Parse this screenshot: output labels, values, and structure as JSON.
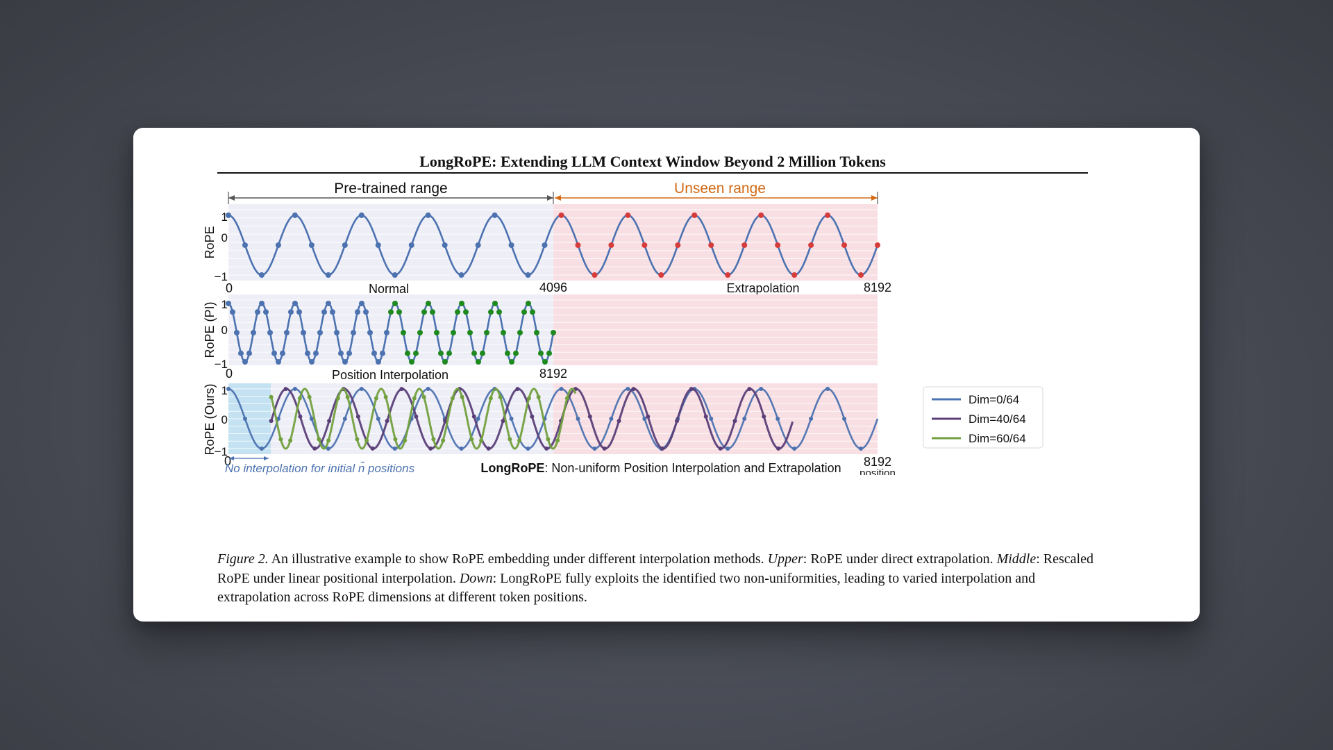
{
  "paper": {
    "running_head": "LongRoPE: Extending LLM Context Window Beyond 2 Million Tokens"
  },
  "figure": {
    "range_labels": {
      "pretrained": "Pre-trained range",
      "unseen": "Unseen range"
    },
    "colors": {
      "curve_blue": "#4c72b0",
      "curve_purple": "#5a3f78",
      "curve_green": "#72a03e",
      "point_red": "#d63c3c",
      "point_green": "#1e8a1e",
      "pretrained_arrow": "#555555",
      "unseen_arrow": "#d36a16",
      "bg_pretrained": "#eeeef7",
      "bg_unseen": "#f8dfe3",
      "bg_initial": "#c4e2f2"
    },
    "panels": [
      {
        "ylabel": "RoPE",
        "yticks": [
          "1",
          "0",
          "−1"
        ],
        "xticks": [
          "0",
          "4096",
          "8192"
        ],
        "sublabels": [
          "Normal",
          "Extrapolation"
        ]
      },
      {
        "ylabel": "RoPE (PI)",
        "yticks": [
          "1",
          "0",
          "−1"
        ],
        "xticks": [
          "0",
          "8192"
        ],
        "sublabels": [
          "Position Interpolation"
        ]
      },
      {
        "ylabel": "RoPE (Ours)",
        "yticks": [
          "1",
          "0",
          "−1"
        ],
        "xticks": [
          "0",
          "8192"
        ],
        "xlabel": "position",
        "note": "No interpolation for initial n̂ positions",
        "sublabel_bold": "LongRoPE",
        "sublabel_rest": ": Non-uniform Position Interpolation and Extrapolation"
      }
    ],
    "legend": [
      "Dim=0/64",
      "Dim=40/64",
      "Dim=60/64"
    ],
    "caption": {
      "label": "Figure 2.",
      "intro": " An illustrative example to show RoPE embedding under different interpolation methods. ",
      "upper_label": "Upper",
      "upper_text": ": RoPE under direct extrapolation.",
      "middle_label": "Middle",
      "middle_text": ": Rescaled RoPE under linear positional interpolation. ",
      "down_label": "Down",
      "down_text": ": LongRoPE fully exploits the identified two non-uniformities, leading to varied interpolation and extrapolation across RoPE dimensions at different token positions."
    }
  },
  "chart_data": [
    {
      "type": "line",
      "title": "",
      "ylabel": "RoPE",
      "xlim": [
        0,
        8192
      ],
      "ylim": [
        -1,
        1
      ],
      "xticks": [
        0,
        4096,
        8192
      ],
      "yticks": [
        -1,
        0,
        1
      ],
      "regions": [
        {
          "name": "Pre-trained range",
          "x": [
            0,
            4096
          ],
          "label": "Normal"
        },
        {
          "name": "Unseen range",
          "x": [
            4096,
            8192
          ],
          "label": "Extrapolation"
        }
      ],
      "series": [
        {
          "function": "cos",
          "cycles": 9.75,
          "markers_per_cycle": 4,
          "marker_colors": [
            "#4c72b0",
            "#d63c3c"
          ]
        }
      ]
    },
    {
      "type": "line",
      "title": "",
      "ylabel": "RoPE (PI)",
      "xlim": [
        0,
        8192
      ],
      "ylim": [
        -1,
        1
      ],
      "xticks": [
        0,
        8192
      ],
      "yticks": [
        -1,
        0,
        1
      ],
      "label": "Position Interpolation",
      "series": [
        {
          "function": "cos",
          "cycles": 9.75,
          "markers_per_cycle": 8,
          "marker_colors": [
            "#4c72b0",
            "#1e8a1e"
          ]
        }
      ]
    },
    {
      "type": "line",
      "title": "",
      "ylabel": "RoPE (Ours)",
      "xlabel": "position",
      "xlim": [
        0,
        8192
      ],
      "ylim": [
        -1,
        1
      ],
      "xticks": [
        0,
        8192
      ],
      "yticks": [
        -1,
        0,
        1
      ],
      "legend_position": "right",
      "series": [
        {
          "name": "Dim=0/64",
          "cycles": 9.75
        },
        {
          "name": "Dim=40/64",
          "cycles": 11.2
        },
        {
          "name": "Dim=60/64",
          "cycles": 17
        }
      ]
    }
  ]
}
